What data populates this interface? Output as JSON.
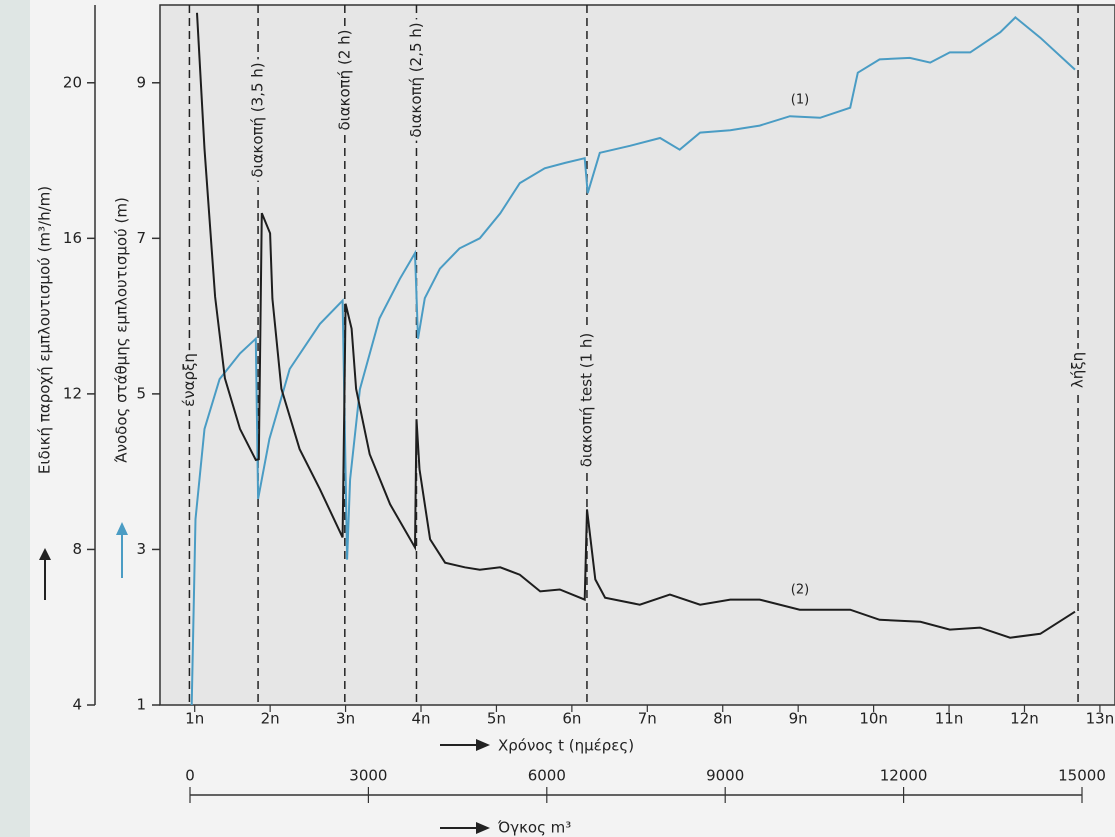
{
  "chart_data": {
    "type": "line",
    "xlabel": "Χρόνος t (ημέρες)",
    "ylabel": "Ειδική παροχή εμπλουτισμού (m³/h/m)",
    "y2label": "Άνοδος στάθμης εμπλουτισμού (m)",
    "x2label": "Όγκος m³",
    "xlim": [
      0.54,
      13.2
    ],
    "xticks": [
      {
        "value": 1,
        "label": "1n"
      },
      {
        "value": 2,
        "label": "2n"
      },
      {
        "value": 3,
        "label": "3n"
      },
      {
        "value": 4,
        "label": "4n"
      },
      {
        "value": 5,
        "label": "5n"
      },
      {
        "value": 6,
        "label": "6n"
      },
      {
        "value": 7,
        "label": "7n"
      },
      {
        "value": 8,
        "label": "8n"
      },
      {
        "value": 9,
        "label": "9n"
      },
      {
        "value": 10,
        "label": "10n"
      },
      {
        "value": 11,
        "label": "11n"
      },
      {
        "value": 12,
        "label": "12n"
      },
      {
        "value": 13,
        "label": "13n"
      }
    ],
    "ylim": [
      4,
      22
    ],
    "yticks": [
      4,
      8,
      12,
      16,
      20
    ],
    "y2lim": [
      1,
      10
    ],
    "y2ticks": [
      1,
      3,
      5,
      7,
      9
    ],
    "x2lim": [
      0,
      15000
    ],
    "x2ticks": [
      0,
      3000,
      6000,
      9000,
      12000,
      15000
    ],
    "events": [
      {
        "x": 0.93,
        "label": "έναρξη"
      },
      {
        "x": 1.84,
        "label": "διακοπή (3,5 h)"
      },
      {
        "x": 2.99,
        "label": "διακοπή (2 h)"
      },
      {
        "x": 3.94,
        "label": "διακοπή (2,5 h)"
      },
      {
        "x": 6.2,
        "label": "διακοπή test (1 h)"
      },
      {
        "x": 12.71,
        "label": "λήξη"
      }
    ],
    "series": [
      {
        "name": "(1)",
        "color": "#4a9cc4",
        "axis": "y2",
        "x": [
          0.96,
          1.01,
          1.13,
          1.33,
          1.6,
          1.81,
          1.84,
          1.99,
          2.26,
          2.66,
          2.96,
          3.02,
          3.06,
          3.19,
          3.45,
          3.72,
          3.92,
          3.96,
          4.05,
          4.25,
          4.51,
          4.78,
          5.05,
          5.31,
          5.64,
          5.91,
          6.17,
          6.21,
          6.37,
          6.77,
          7.17,
          7.43,
          7.7,
          8.1,
          8.49,
          8.89,
          9.29,
          9.69,
          9.79,
          10.08,
          10.48,
          10.75,
          11.01,
          11.28,
          11.68,
          11.88,
          12.21,
          12.67
        ],
        "values": [
          1.0,
          3.39,
          4.55,
          5.19,
          5.52,
          5.71,
          3.65,
          4.42,
          5.32,
          5.9,
          6.2,
          2.87,
          3.9,
          5.06,
          5.97,
          6.48,
          6.81,
          5.71,
          6.23,
          6.61,
          6.87,
          7.0,
          7.32,
          7.71,
          7.9,
          7.97,
          8.03,
          7.58,
          8.1,
          8.19,
          8.29,
          8.14,
          8.36,
          8.39,
          8.45,
          8.57,
          8.55,
          8.68,
          9.13,
          9.3,
          9.32,
          9.26,
          9.39,
          9.39,
          9.65,
          9.84,
          9.58,
          9.17
        ]
      },
      {
        "name": "(2)",
        "color": "#1e1e1e",
        "axis": "y",
        "x": [
          1.03,
          1.13,
          1.27,
          1.4,
          1.6,
          1.81,
          1.85,
          1.89,
          2.0,
          2.03,
          2.15,
          2.39,
          2.66,
          2.96,
          3.0,
          3.08,
          3.14,
          3.32,
          3.59,
          3.92,
          3.94,
          3.98,
          4.12,
          4.32,
          4.58,
          4.78,
          5.05,
          5.31,
          5.58,
          5.84,
          6.17,
          6.2,
          6.31,
          6.44,
          6.9,
          7.3,
          7.7,
          8.1,
          8.49,
          9.02,
          9.69,
          10.08,
          10.62,
          11.01,
          11.41,
          11.81,
          12.21,
          12.67
        ],
        "values": [
          21.8,
          18.3,
          14.5,
          12.4,
          11.1,
          10.3,
          10.32,
          16.65,
          16.13,
          14.45,
          12.13,
          10.58,
          9.55,
          8.31,
          14.32,
          13.68,
          12.13,
          10.45,
          9.16,
          8.05,
          11.35,
          10.06,
          8.26,
          7.66,
          7.54,
          7.48,
          7.54,
          7.35,
          6.92,
          6.97,
          6.71,
          9.03,
          7.23,
          6.76,
          6.58,
          6.84,
          6.58,
          6.71,
          6.71,
          6.45,
          6.45,
          6.19,
          6.14,
          5.94,
          5.99,
          5.73,
          5.83,
          6.4
        ]
      }
    ]
  }
}
